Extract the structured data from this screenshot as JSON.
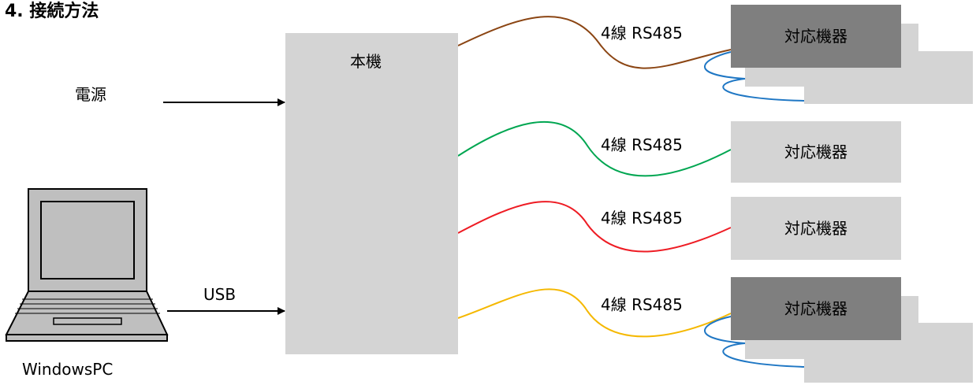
{
  "title": "4. 接続方法",
  "main_unit": {
    "label": "本機"
  },
  "power": {
    "label": "電源"
  },
  "usb": {
    "label": "USB"
  },
  "pc": {
    "label": "WindowsPC"
  },
  "connections": [
    {
      "cable_label": "4線 RS485",
      "device_label": "対応機器",
      "color": "#8b4513",
      "multi_drop": true
    },
    {
      "cable_label": "4線 RS485",
      "device_label": "対応機器",
      "color": "#00a651",
      "multi_drop": false
    },
    {
      "cable_label": "4線 RS485",
      "device_label": "対応機器",
      "color": "#ee1c24",
      "multi_drop": false
    },
    {
      "cable_label": "4線 RS485",
      "device_label": "対応機器",
      "color": "#f5b800",
      "multi_drop": true
    }
  ],
  "colors": {
    "box_light": "#d4d4d4",
    "box_dark": "#7f7f7f",
    "link_blue": "#1f77c4"
  }
}
